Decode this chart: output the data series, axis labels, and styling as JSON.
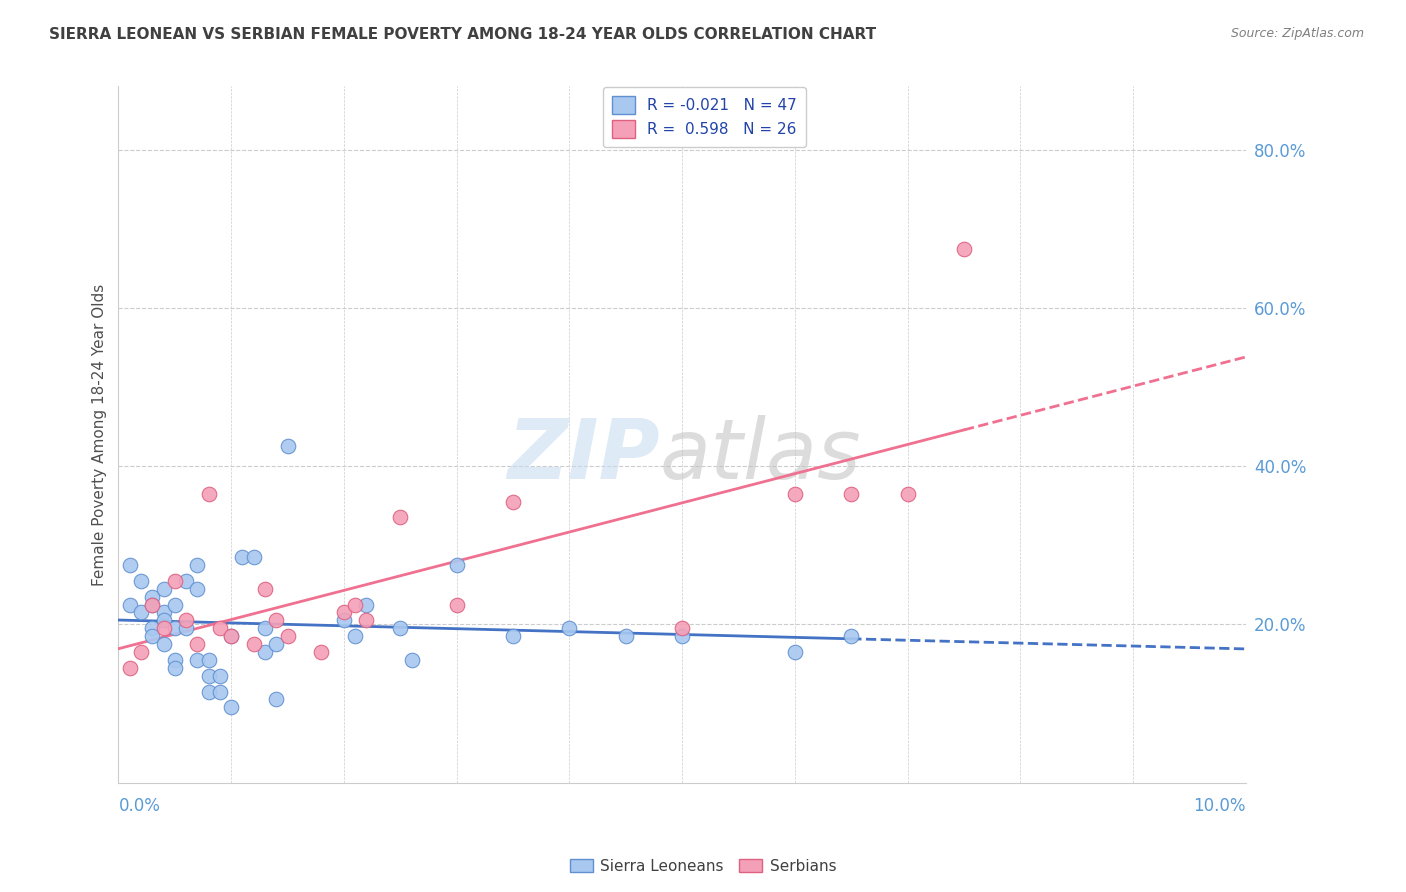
{
  "title": "SIERRA LEONEAN VS SERBIAN FEMALE POVERTY AMONG 18-24 YEAR OLDS CORRELATION CHART",
  "source": "Source: ZipAtlas.com",
  "ylabel": "Female Poverty Among 18-24 Year Olds",
  "xlim": [
    0.0,
    0.1
  ],
  "ylim": [
    0.0,
    0.88
  ],
  "yticks": [
    0.2,
    0.4,
    0.6,
    0.8
  ],
  "ytick_labels": [
    "20.0%",
    "40.0%",
    "60.0%",
    "80.0%"
  ],
  "xtick_labels": [
    "0.0%",
    "10.0%"
  ],
  "legend1_label": "R = -0.021   N = 47",
  "legend2_label": "R =  0.598   N = 26",
  "legend_title1": "Sierra Leoneans",
  "legend_title2": "Serbians",
  "sierra_color": "#A8C8F0",
  "serbian_color": "#F4A0B8",
  "sierra_edge_color": "#6090D0",
  "serbian_edge_color": "#E06080",
  "sierra_line_color": "#4472C4",
  "serbian_line_color": "#F07090",
  "grid_color": "#CCCCCC",
  "sierra_x": [
    0.001,
    0.001,
    0.002,
    0.002,
    0.003,
    0.003,
    0.003,
    0.003,
    0.004,
    0.004,
    0.004,
    0.004,
    0.005,
    0.005,
    0.005,
    0.005,
    0.006,
    0.006,
    0.007,
    0.007,
    0.007,
    0.008,
    0.008,
    0.008,
    0.009,
    0.009,
    0.01,
    0.01,
    0.011,
    0.012,
    0.013,
    0.013,
    0.014,
    0.014,
    0.015,
    0.02,
    0.021,
    0.022,
    0.025,
    0.026,
    0.03,
    0.035,
    0.04,
    0.045,
    0.05,
    0.06,
    0.065
  ],
  "sierra_y": [
    0.275,
    0.225,
    0.255,
    0.215,
    0.235,
    0.225,
    0.195,
    0.185,
    0.245,
    0.215,
    0.205,
    0.175,
    0.225,
    0.195,
    0.155,
    0.145,
    0.255,
    0.195,
    0.275,
    0.245,
    0.155,
    0.155,
    0.135,
    0.115,
    0.135,
    0.115,
    0.185,
    0.095,
    0.285,
    0.285,
    0.195,
    0.165,
    0.175,
    0.105,
    0.425,
    0.205,
    0.185,
    0.225,
    0.195,
    0.155,
    0.275,
    0.185,
    0.195,
    0.185,
    0.185,
    0.165,
    0.185
  ],
  "serbian_x": [
    0.001,
    0.002,
    0.003,
    0.004,
    0.005,
    0.006,
    0.007,
    0.008,
    0.009,
    0.01,
    0.012,
    0.013,
    0.014,
    0.015,
    0.018,
    0.02,
    0.021,
    0.022,
    0.025,
    0.03,
    0.035,
    0.05,
    0.06,
    0.065,
    0.07,
    0.075
  ],
  "serbian_y": [
    0.145,
    0.165,
    0.225,
    0.195,
    0.255,
    0.205,
    0.175,
    0.365,
    0.195,
    0.185,
    0.175,
    0.245,
    0.205,
    0.185,
    0.165,
    0.215,
    0.225,
    0.205,
    0.335,
    0.225,
    0.355,
    0.195,
    0.365,
    0.365,
    0.365,
    0.675
  ],
  "watermark_zip_color": "#C8DCF0",
  "watermark_atlas_color": "#C0C0C0"
}
